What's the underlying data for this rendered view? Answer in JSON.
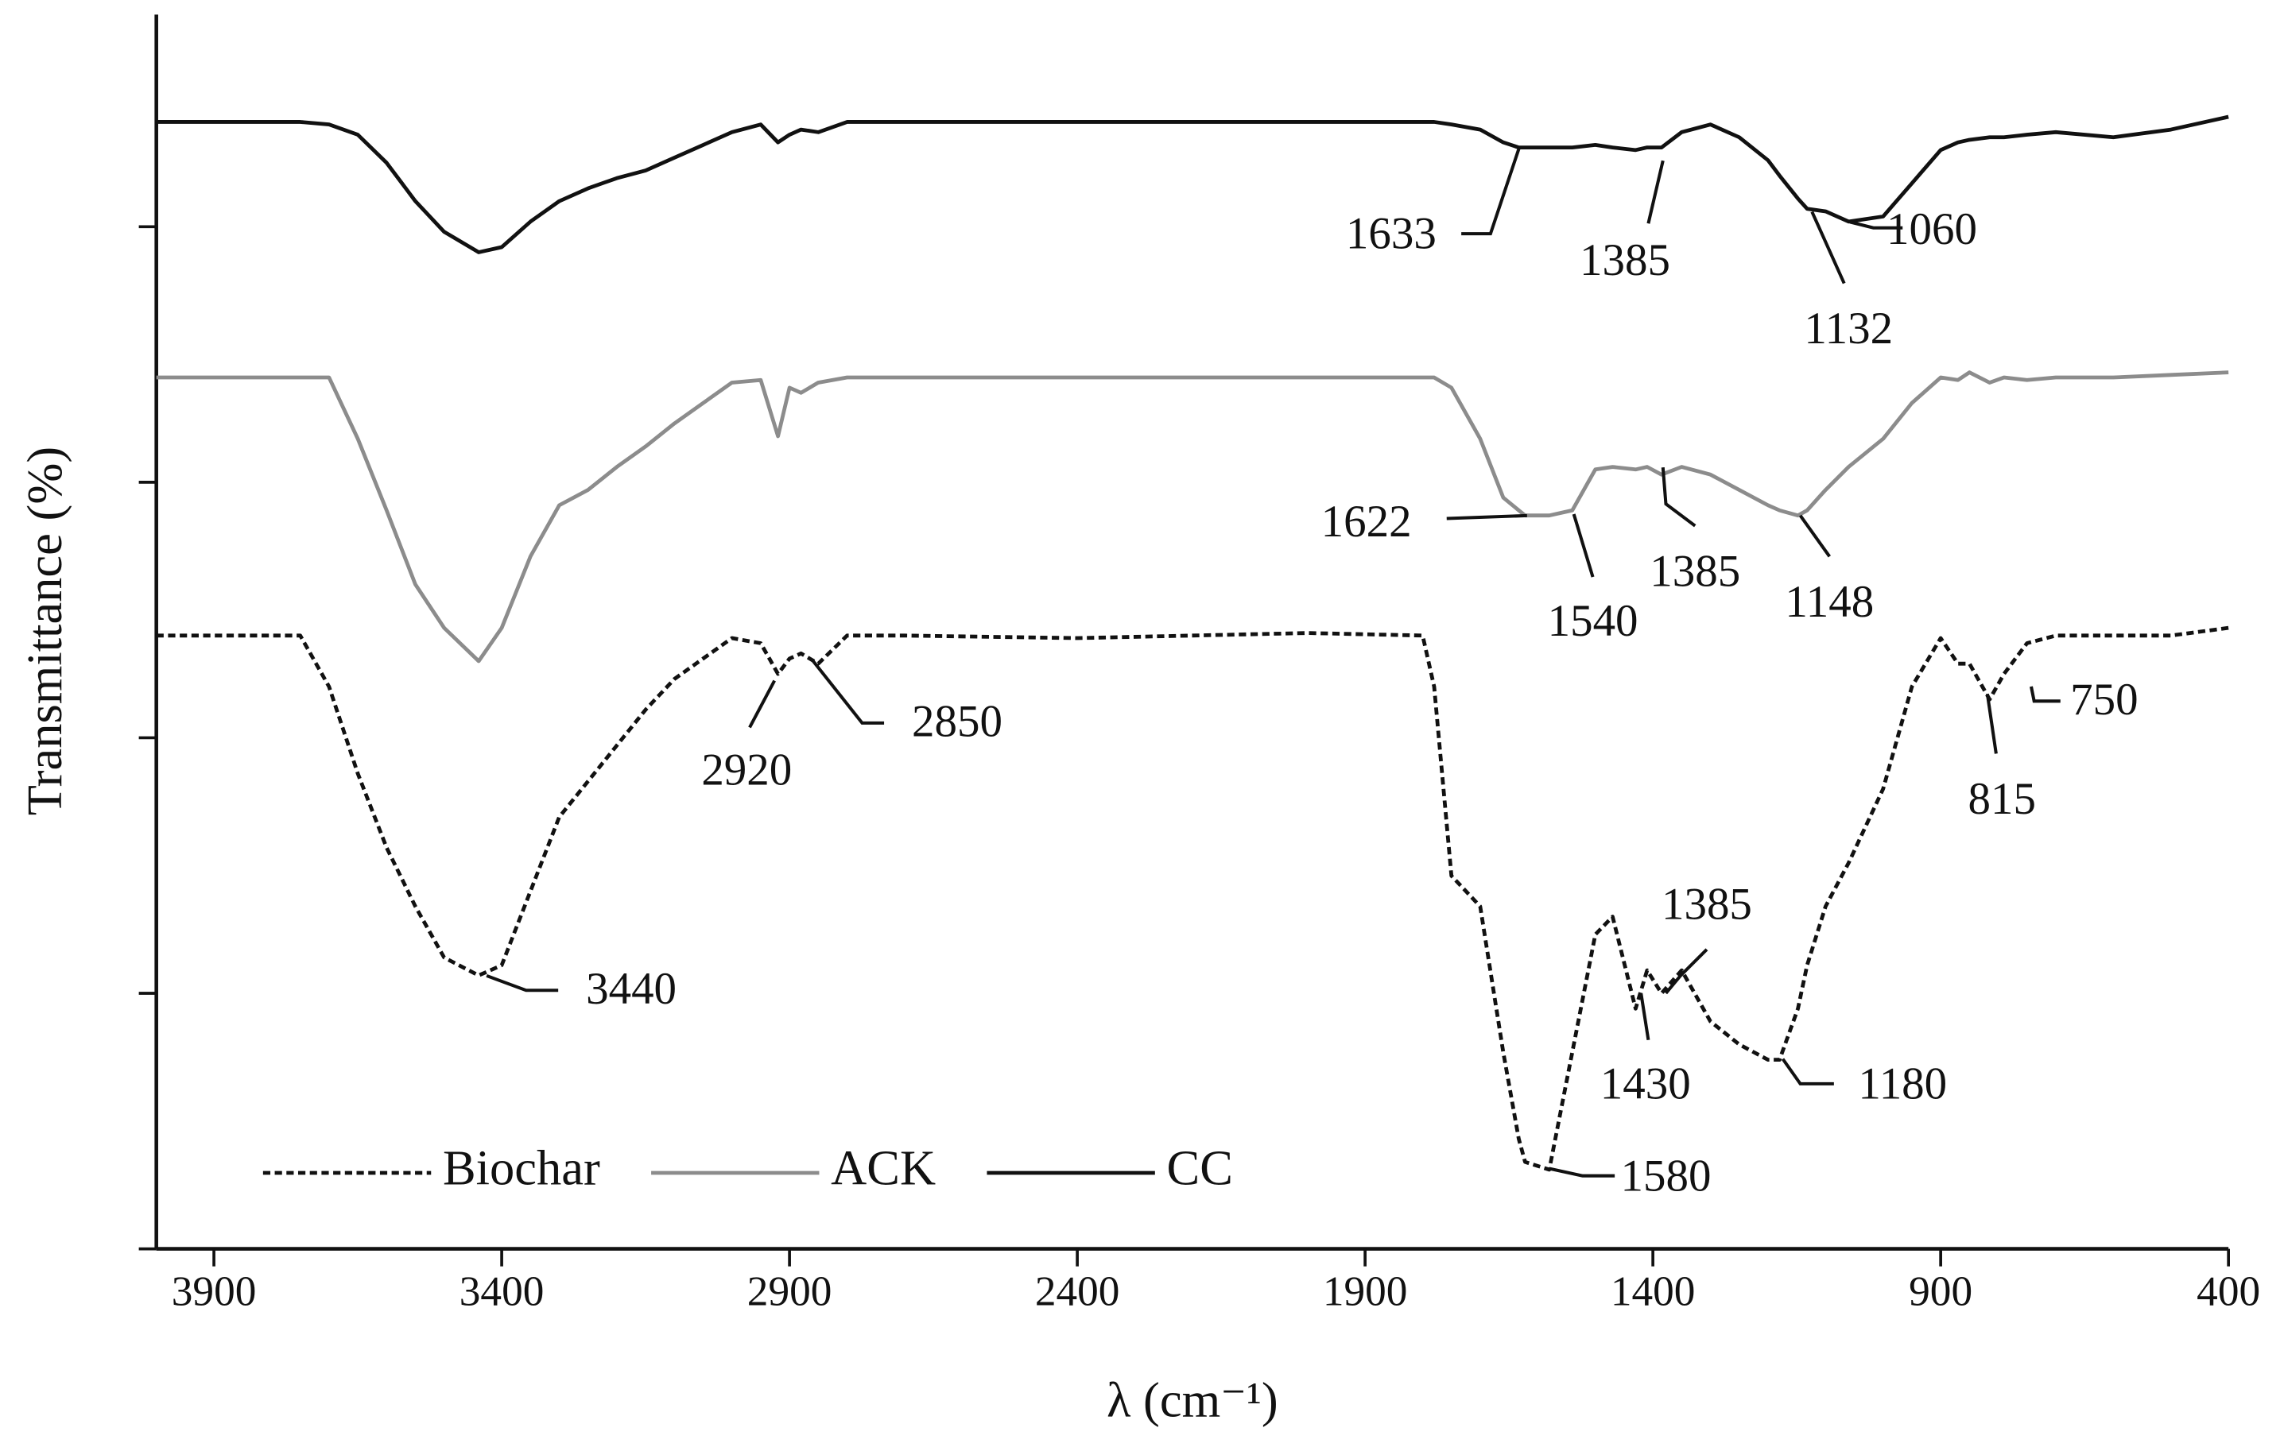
{
  "chart_data": {
    "type": "line",
    "x_label": "λ (cm⁻¹)",
    "y_label": "Transmittance (%)",
    "xlim": [
      4000,
      400
    ],
    "xticks": [
      3900,
      3400,
      2900,
      2400,
      1900,
      1400,
      900,
      400
    ],
    "ylim": [
      0,
      4.83
    ],
    "yticks": [
      0,
      1,
      2,
      3,
      4
    ],
    "legend": "lower left",
    "x": [
      4000,
      3800,
      3750,
      3700,
      3650,
      3600,
      3550,
      3500,
      3440,
      3400,
      3350,
      3300,
      3250,
      3200,
      3150,
      3100,
      3050,
      3000,
      2950,
      2920,
      2900,
      2880,
      2850,
      2800,
      2700,
      2400,
      2000,
      1800,
      1780,
      1750,
      1700,
      1660,
      1633,
      1622,
      1580,
      1540,
      1500,
      1470,
      1430,
      1410,
      1385,
      1350,
      1300,
      1250,
      1200,
      1180,
      1148,
      1132,
      1100,
      1060,
      1000,
      950,
      900,
      870,
      850,
      815,
      790,
      750,
      700,
      600,
      500,
      400
    ],
    "series": [
      {
        "name": "Biochar",
        "color": "#111111",
        "dashed": true,
        "values": [
          2.4,
          2.4,
          2.4,
          2.2,
          1.86,
          1.57,
          1.34,
          1.14,
          1.07,
          1.11,
          1.4,
          1.69,
          1.83,
          1.97,
          2.11,
          2.23,
          2.31,
          2.39,
          2.37,
          2.25,
          2.31,
          2.33,
          2.29,
          2.4,
          2.4,
          2.39,
          2.41,
          2.4,
          2.2,
          1.46,
          1.34,
          0.77,
          0.43,
          0.34,
          0.31,
          0.77,
          1.23,
          1.3,
          0.94,
          1.09,
          1.0,
          1.09,
          0.89,
          0.8,
          0.74,
          0.74,
          0.94,
          1.11,
          1.34,
          1.51,
          1.8,
          2.2,
          2.39,
          2.29,
          2.29,
          2.15,
          2.25,
          2.37,
          2.4,
          2.4,
          2.4,
          2.43
        ]
      },
      {
        "name": "ACK",
        "color": "#8c8c8c",
        "dashed": false,
        "values": [
          3.41,
          3.41,
          3.41,
          3.41,
          3.17,
          2.89,
          2.6,
          2.43,
          2.3,
          2.43,
          2.71,
          2.91,
          2.97,
          3.06,
          3.14,
          3.23,
          3.31,
          3.39,
          3.4,
          3.18,
          3.37,
          3.35,
          3.39,
          3.41,
          3.41,
          3.41,
          3.41,
          3.41,
          3.41,
          3.37,
          3.17,
          2.94,
          2.89,
          2.87,
          2.87,
          2.89,
          3.05,
          3.06,
          3.05,
          3.06,
          3.03,
          3.06,
          3.03,
          2.97,
          2.91,
          2.89,
          2.87,
          2.89,
          2.97,
          3.06,
          3.17,
          3.31,
          3.41,
          3.4,
          3.43,
          3.39,
          3.41,
          3.4,
          3.41,
          3.41,
          3.42,
          3.43
        ]
      },
      {
        "name": "CC",
        "color": "#111111",
        "dashed": false,
        "values": [
          4.41,
          4.41,
          4.41,
          4.4,
          4.36,
          4.25,
          4.1,
          3.98,
          3.9,
          3.92,
          4.02,
          4.1,
          4.15,
          4.19,
          4.22,
          4.27,
          4.32,
          4.37,
          4.4,
          4.33,
          4.36,
          4.38,
          4.37,
          4.41,
          4.41,
          4.41,
          4.41,
          4.41,
          4.41,
          4.4,
          4.38,
          4.33,
          4.31,
          4.31,
          4.31,
          4.31,
          4.32,
          4.31,
          4.3,
          4.31,
          4.31,
          4.37,
          4.4,
          4.35,
          4.26,
          4.2,
          4.11,
          4.07,
          4.06,
          4.02,
          4.04,
          4.17,
          4.3,
          4.33,
          4.34,
          4.35,
          4.35,
          4.36,
          4.37,
          4.35,
          4.38,
          4.43
        ]
      }
    ],
    "annotations": [
      "1633",
      "1385",
      "1132",
      "1060",
      "1622",
      "1540",
      "1385",
      "1148",
      "2920",
      "2850",
      "3440",
      "1385",
      "1430",
      "1180",
      "815",
      "750",
      "1580"
    ]
  }
}
